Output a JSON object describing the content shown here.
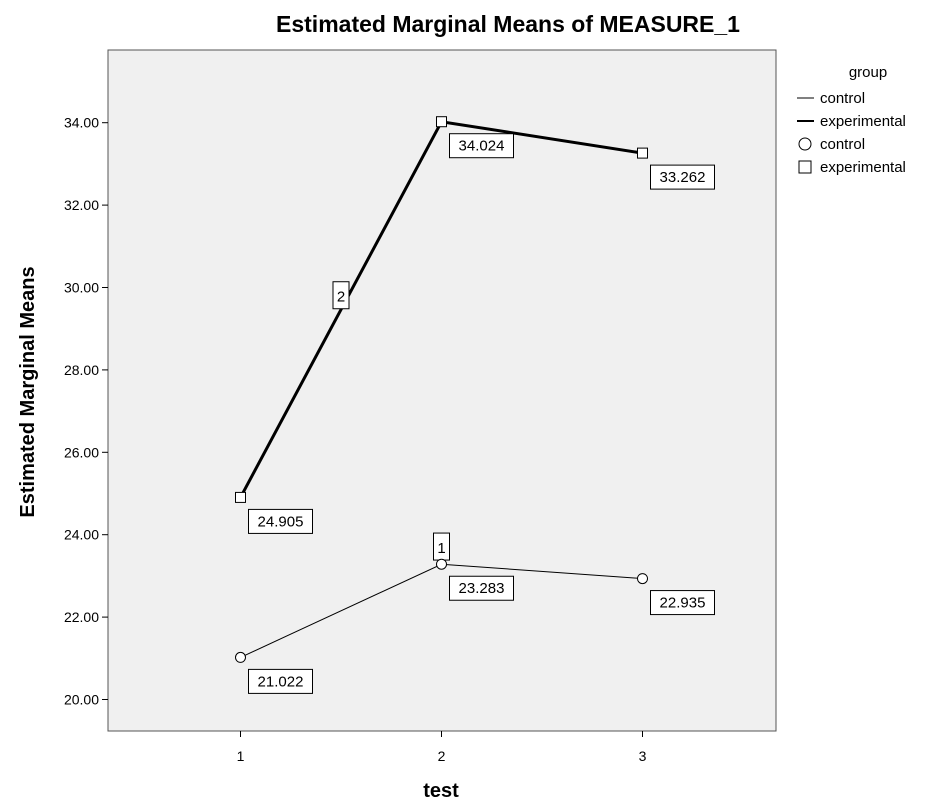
{
  "chart_data": {
    "type": "line",
    "title": "Estimated Marginal Means of MEASURE_1",
    "xlabel": "test",
    "ylabel": "Estimated Marginal Means",
    "categories": [
      "1",
      "2",
      "3"
    ],
    "ylim": [
      19.4,
      35.9
    ],
    "yticks": [
      20,
      22,
      24,
      26,
      28,
      30,
      32,
      34
    ],
    "ytick_labels": [
      "20.00",
      "22.00",
      "24.00",
      "26.00",
      "28.00",
      "30.00",
      "32.00",
      "34.00"
    ],
    "grid": false,
    "legend_position": "right",
    "legend": {
      "title": "group",
      "line_entries": [
        "control",
        "experimental"
      ],
      "marker_entries": [
        "control",
        "experimental"
      ]
    },
    "series": [
      {
        "name": "control",
        "marker": "circle",
        "line_label": "1",
        "line_label_x": 2,
        "line_label_y": 23.7,
        "values": [
          21.022,
          23.283,
          22.935
        ],
        "labels": [
          "21.022",
          "23.283",
          "22.935"
        ]
      },
      {
        "name": "experimental",
        "marker": "square",
        "line_label": "2",
        "line_label_x": 1.5,
        "line_label_y": 29.8,
        "values": [
          24.905,
          34.024,
          33.262
        ],
        "labels": [
          "24.905",
          "34.024",
          "33.262"
        ]
      }
    ],
    "colors": {
      "plot_background": "#f0f0f0",
      "line": "#000000",
      "label_box": "#ffffff"
    }
  }
}
